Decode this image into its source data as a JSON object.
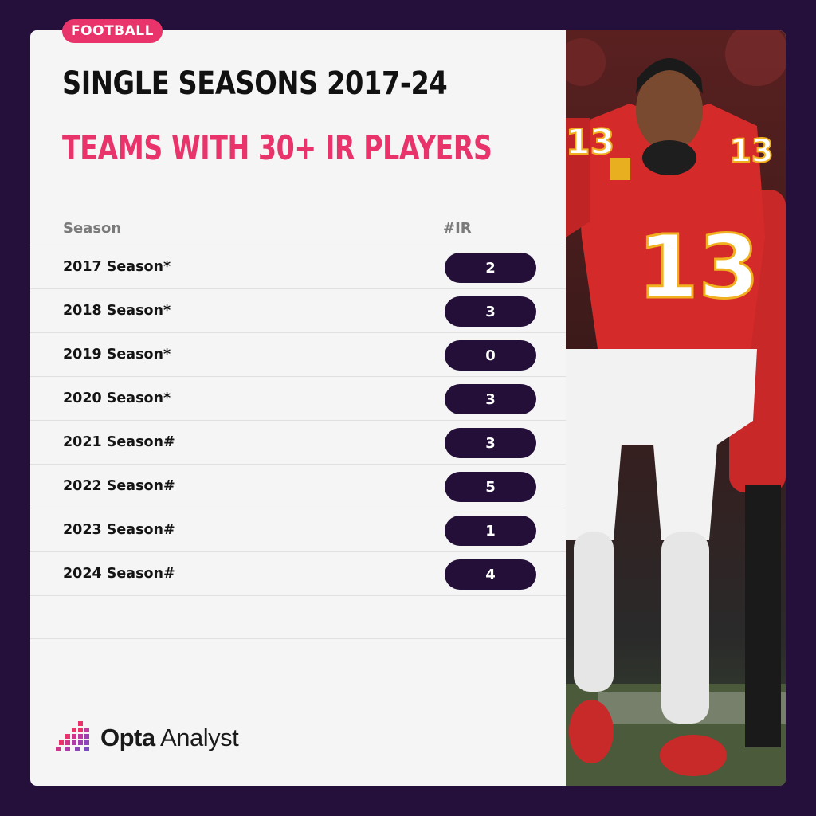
{
  "tag": "FOOTBALL",
  "title": "SINGLE SEASONS 2017-24",
  "subtitle": "TEAMS WITH 30+ IR PLAYERS",
  "brand": {
    "bold": "Opta",
    "light": "Analyst"
  },
  "colors": {
    "accent": "#e8336b",
    "dark": "#230f37",
    "background": "#24103a",
    "card": "#f5f5f5"
  },
  "chart_data": {
    "type": "table",
    "columns": [
      "Season",
      "#IR"
    ],
    "rows": [
      {
        "season": "2017 Season*",
        "ir": "2"
      },
      {
        "season": "2018 Season*",
        "ir": "3"
      },
      {
        "season": "2019 Season*",
        "ir": "0"
      },
      {
        "season": "2020 Season*",
        "ir": "3"
      },
      {
        "season": "2021 Season#",
        "ir": "3"
      },
      {
        "season": "2022 Season#",
        "ir": "5"
      },
      {
        "season": "2023 Season#",
        "ir": "1"
      },
      {
        "season": "2024 Season#",
        "ir": "4"
      }
    ]
  }
}
